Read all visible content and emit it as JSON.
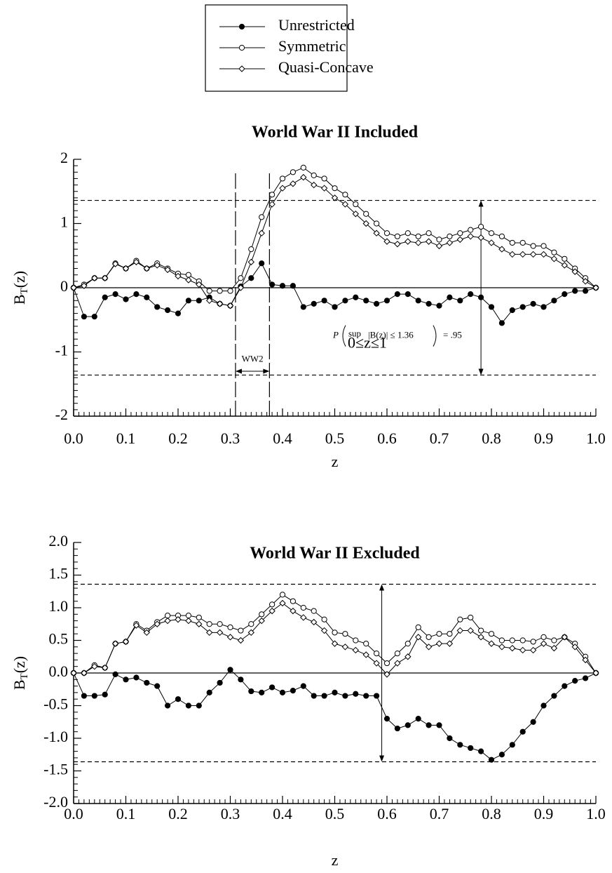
{
  "chart_data": [
    {
      "type": "line",
      "title": "World War II Included",
      "xlabel": "z",
      "ylabel": {
        "base": "B",
        "sub": "T",
        "tail": "(z)"
      },
      "xlim": [
        0,
        1
      ],
      "xticks": [
        {
          "value": 0,
          "label": "0.0"
        },
        0.1,
        0.2,
        0.3,
        0.4,
        0.5,
        0.6,
        0.7,
        0.8,
        0.9,
        {
          "value": 1,
          "label": "1.0"
        }
      ],
      "ylim": [
        -2,
        2
      ],
      "yticks": [
        -2,
        -1,
        0,
        1,
        2
      ],
      "hlines": [
        1.36,
        -1.36
      ],
      "period": [
        0.31,
        0.375
      ],
      "period_label": "WW2",
      "arrow_x": 0.78,
      "annotation": {
        "lead": "P",
        "op": "sup",
        "range": "0≤z≤1",
        "body": "|B(z)| ≤ 1.36",
        "tail": "= .95"
      },
      "x": [
        0,
        0.02,
        0.04,
        0.06,
        0.08,
        0.1,
        0.12,
        0.14,
        0.16,
        0.18,
        0.2,
        0.22,
        0.24,
        0.26,
        0.28,
        0.3,
        0.32,
        0.34,
        0.36,
        0.38,
        0.4,
        0.42,
        0.44,
        0.46,
        0.48,
        0.5,
        0.52,
        0.54,
        0.56,
        0.58,
        0.6,
        0.62,
        0.64,
        0.66,
        0.68,
        0.7,
        0.72,
        0.74,
        0.76,
        0.78,
        0.8,
        0.82,
        0.84,
        0.86,
        0.88,
        0.9,
        0.92,
        0.94,
        0.96,
        0.98,
        1
      ],
      "series": [
        {
          "name": "Unrestricted",
          "color": "#000000",
          "marker": "filled-circle",
          "values": [
            0,
            -0.45,
            -0.45,
            -0.15,
            -0.1,
            -0.18,
            -0.1,
            -0.15,
            -0.3,
            -0.35,
            -0.4,
            -0.2,
            -0.2,
            -0.15,
            -0.25,
            -0.28,
            0.02,
            0.15,
            0.38,
            0.05,
            0.03,
            0.03,
            -0.3,
            -0.25,
            -0.2,
            -0.3,
            -0.2,
            -0.15,
            -0.2,
            -0.25,
            -0.2,
            -0.1,
            -0.1,
            -0.2,
            -0.25,
            -0.28,
            -0.15,
            -0.2,
            -0.1,
            -0.15,
            -0.3,
            -0.55,
            -0.35,
            -0.3,
            -0.25,
            -0.3,
            -0.2,
            -0.1,
            -0.05,
            -0.05,
            0
          ]
        },
        {
          "name": "Symmetric",
          "color": "#000000",
          "marker": "circle",
          "values": [
            0,
            0.05,
            0.15,
            0.15,
            0.38,
            0.3,
            0.42,
            0.3,
            0.38,
            0.3,
            0.22,
            0.2,
            0.1,
            -0.05,
            -0.05,
            -0.05,
            0.15,
            0.6,
            1.1,
            1.45,
            1.7,
            1.8,
            1.87,
            1.75,
            1.7,
            1.55,
            1.45,
            1.3,
            1.15,
            1.0,
            0.85,
            0.8,
            0.85,
            0.8,
            0.85,
            0.75,
            0.8,
            0.85,
            0.9,
            0.95,
            0.85,
            0.8,
            0.7,
            0.7,
            0.65,
            0.65,
            0.55,
            0.45,
            0.3,
            0.15,
            0
          ]
        },
        {
          "name": "Quasi-Concave",
          "color": "#000000",
          "marker": "diamond",
          "values": [
            0,
            0.03,
            0.15,
            0.15,
            0.37,
            0.3,
            0.4,
            0.3,
            0.35,
            0.28,
            0.18,
            0.12,
            0.05,
            -0.2,
            -0.25,
            -0.28,
            0.0,
            0.4,
            0.85,
            1.3,
            1.55,
            1.62,
            1.72,
            1.6,
            1.55,
            1.4,
            1.3,
            1.15,
            1.0,
            0.85,
            0.72,
            0.68,
            0.72,
            0.7,
            0.72,
            0.65,
            0.7,
            0.75,
            0.8,
            0.78,
            0.7,
            0.6,
            0.52,
            0.52,
            0.52,
            0.52,
            0.45,
            0.35,
            0.25,
            0.1,
            0
          ]
        }
      ]
    },
    {
      "type": "line",
      "title": "World War II Excluded",
      "xlabel": "z",
      "ylabel": {
        "base": "B",
        "sub": "T",
        "tail": "(z)"
      },
      "xlim": [
        0,
        1
      ],
      "xticks": [
        {
          "value": 0,
          "label": "0.0"
        },
        0.1,
        0.2,
        0.3,
        0.4,
        0.5,
        0.6,
        0.7,
        0.8,
        0.9,
        {
          "value": 1,
          "label": "1.0"
        }
      ],
      "ylim": [
        -2,
        2
      ],
      "yticks": [
        {
          "value": -2,
          "label": "-2.0"
        },
        -1.5,
        {
          "value": -1,
          "label": "-1.0"
        },
        -0.5,
        {
          "value": 0,
          "label": "0.0"
        },
        0.5,
        {
          "value": 1,
          "label": "1.0"
        },
        1.5,
        {
          "value": 2,
          "label": "2.0"
        }
      ],
      "hlines": [
        1.36,
        -1.36
      ],
      "arrow_x": 0.59,
      "x": [
        0,
        0.02,
        0.04,
        0.06,
        0.08,
        0.1,
        0.12,
        0.14,
        0.16,
        0.18,
        0.2,
        0.22,
        0.24,
        0.26,
        0.28,
        0.3,
        0.32,
        0.34,
        0.36,
        0.38,
        0.4,
        0.42,
        0.44,
        0.46,
        0.48,
        0.5,
        0.52,
        0.54,
        0.56,
        0.58,
        0.6,
        0.62,
        0.64,
        0.66,
        0.68,
        0.7,
        0.72,
        0.74,
        0.76,
        0.78,
        0.8,
        0.82,
        0.84,
        0.86,
        0.88,
        0.9,
        0.92,
        0.94,
        0.96,
        0.98,
        1
      ],
      "series": [
        {
          "name": "Unrestricted",
          "color": "#000000",
          "marker": "filled-circle",
          "values": [
            0,
            -0.35,
            -0.35,
            -0.33,
            -0.02,
            -0.1,
            -0.07,
            -0.15,
            -0.2,
            -0.5,
            -0.4,
            -0.5,
            -0.5,
            -0.3,
            -0.15,
            0.05,
            -0.1,
            -0.28,
            -0.3,
            -0.22,
            -0.3,
            -0.27,
            -0.2,
            -0.35,
            -0.35,
            -0.3,
            -0.35,
            -0.32,
            -0.35,
            -0.35,
            -0.7,
            -0.85,
            -0.8,
            -0.7,
            -0.8,
            -0.8,
            -1.0,
            -1.1,
            -1.15,
            -1.2,
            -1.33,
            -1.25,
            -1.1,
            -0.9,
            -0.75,
            -0.5,
            -0.35,
            -0.2,
            -0.12,
            -0.08,
            0
          ]
        },
        {
          "name": "Symmetric",
          "color": "#000000",
          "marker": "circle",
          "values": [
            0,
            0.0,
            0.12,
            0.08,
            0.45,
            0.48,
            0.75,
            0.65,
            0.78,
            0.88,
            0.88,
            0.88,
            0.85,
            0.75,
            0.75,
            0.7,
            0.65,
            0.75,
            0.9,
            1.05,
            1.2,
            1.1,
            1.0,
            0.95,
            0.82,
            0.62,
            0.6,
            0.5,
            0.45,
            0.3,
            0.15,
            0.3,
            0.45,
            0.7,
            0.55,
            0.6,
            0.6,
            0.82,
            0.85,
            0.65,
            0.6,
            0.5,
            0.5,
            0.5,
            0.48,
            0.55,
            0.5,
            0.55,
            0.45,
            0.25,
            0
          ]
        },
        {
          "name": "Quasi-Concave",
          "color": "#000000",
          "marker": "diamond",
          "values": [
            0,
            0.0,
            0.1,
            0.08,
            0.45,
            0.48,
            0.73,
            0.62,
            0.75,
            0.8,
            0.82,
            0.8,
            0.75,
            0.62,
            0.62,
            0.55,
            0.5,
            0.62,
            0.8,
            0.95,
            1.07,
            0.95,
            0.85,
            0.78,
            0.65,
            0.45,
            0.4,
            0.35,
            0.28,
            0.15,
            -0.02,
            0.15,
            0.25,
            0.55,
            0.4,
            0.45,
            0.45,
            0.65,
            0.65,
            0.55,
            0.45,
            0.4,
            0.38,
            0.35,
            0.35,
            0.45,
            0.38,
            0.55,
            0.4,
            0.2,
            0
          ]
        }
      ]
    }
  ]
}
